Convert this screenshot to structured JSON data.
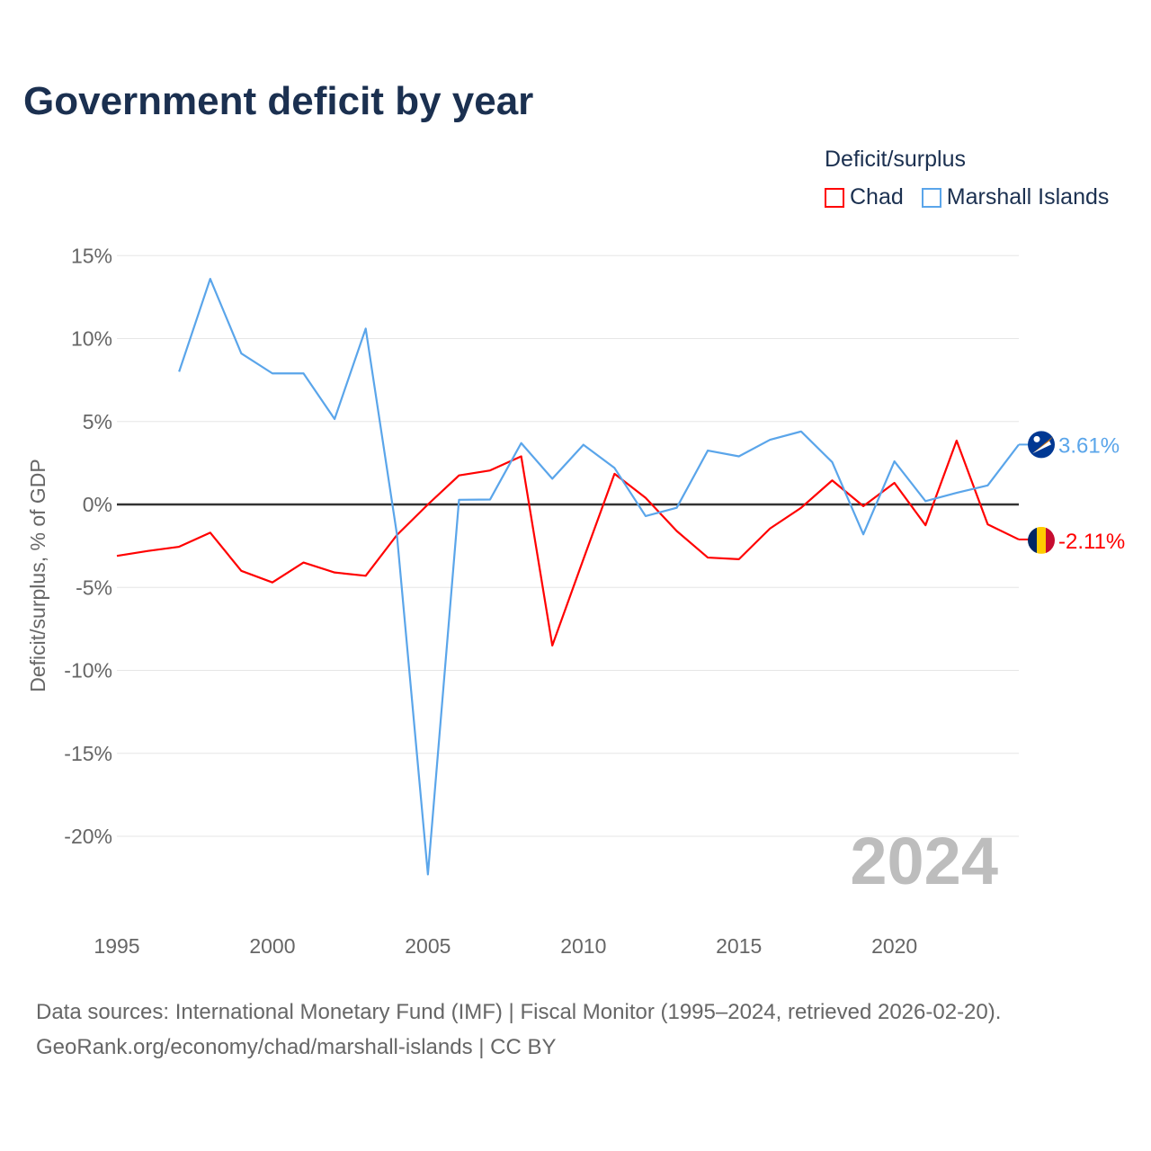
{
  "title": "Government deficit by year",
  "legend": {
    "title": "Deficit/surplus",
    "items": [
      {
        "label": "Chad",
        "color": "#ff0000"
      },
      {
        "label": "Marshall Islands",
        "color": "#5aa5ea"
      }
    ]
  },
  "watermark_year": "2024",
  "footer": {
    "line1": "Data sources: International Monetary Fund (IMF) | Fiscal Monitor (1995–2024, retrieved 2026-02-20).",
    "line2": "GeoRank.org/economy/chad/marshall-islands | CC BY"
  },
  "chart_data": {
    "type": "line",
    "title": "Government deficit by year",
    "xlabel": "",
    "ylabel": "Deficit/surplus, % of GDP",
    "xlim": [
      1995,
      2024
    ],
    "ylim": [
      -22.5,
      15
    ],
    "x_ticks": [
      1995,
      2000,
      2005,
      2010,
      2015,
      2020
    ],
    "y_ticks": [
      15,
      10,
      5,
      0,
      -5,
      -10,
      -15,
      -20
    ],
    "y_tick_labels": [
      "15%",
      "10%",
      "5%",
      "0%",
      "-5%",
      "-10%",
      "-15%",
      "-20%"
    ],
    "grid": true,
    "legend_position": "top-right",
    "series": [
      {
        "name": "Chad",
        "color": "#ff0000",
        "end_label": "-2.11%",
        "x": [
          1995,
          1996,
          1997,
          1998,
          1999,
          2000,
          2001,
          2002,
          2003,
          2004,
          2005,
          2006,
          2007,
          2008,
          2009,
          2010,
          2011,
          2012,
          2013,
          2014,
          2015,
          2016,
          2017,
          2018,
          2019,
          2020,
          2021,
          2022,
          2023,
          2024
        ],
        "values": [
          -3.1,
          -2.8,
          -2.55,
          -1.7,
          -4.0,
          -4.7,
          -3.5,
          -4.1,
          -4.3,
          -1.85,
          0.0,
          1.75,
          2.05,
          2.9,
          -8.5,
          -3.3,
          1.85,
          0.4,
          -1.6,
          -3.2,
          -3.3,
          -1.45,
          -0.2,
          1.45,
          -0.1,
          1.3,
          -1.25,
          3.85,
          -1.2,
          -2.11
        ]
      },
      {
        "name": "Marshall Islands",
        "color": "#5aa5ea",
        "end_label": "3.61%",
        "x": [
          1997,
          1998,
          1999,
          2000,
          2001,
          2002,
          2003,
          2004,
          2005,
          2006,
          2007,
          2008,
          2009,
          2010,
          2011,
          2012,
          2013,
          2014,
          2015,
          2016,
          2017,
          2018,
          2019,
          2020,
          2021,
          2022,
          2023,
          2024
        ],
        "values": [
          8.0,
          13.6,
          9.1,
          7.9,
          7.9,
          5.15,
          10.6,
          -1.75,
          -22.3,
          0.28,
          0.3,
          3.7,
          1.55,
          3.6,
          2.2,
          -0.7,
          -0.2,
          3.25,
          2.9,
          3.9,
          4.4,
          2.55,
          -1.8,
          2.6,
          0.2,
          0.7,
          1.15,
          3.61
        ]
      }
    ]
  }
}
